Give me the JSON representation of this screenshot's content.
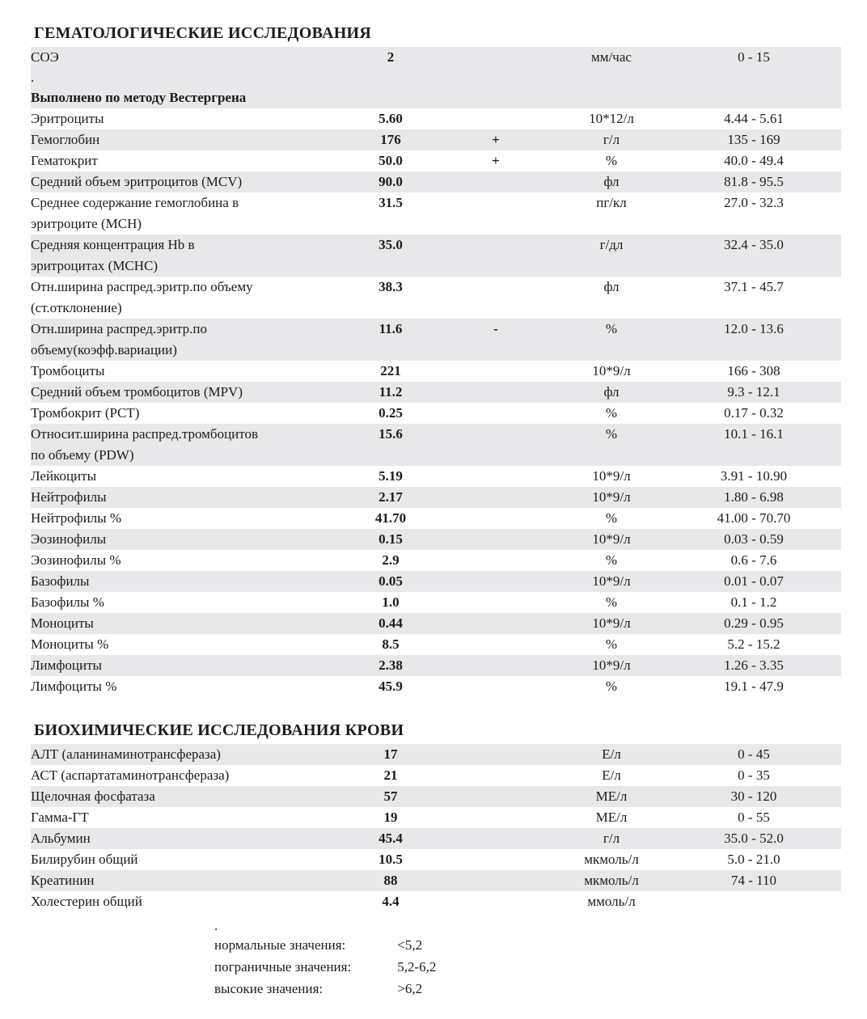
{
  "page": {
    "background": "#ffffff",
    "text_color": "#1c1c1c",
    "stripe_color": "#e8e8ea"
  },
  "hematology": {
    "title": "ГЕМАТОЛОГИЧЕСКИЕ ИССЛЕДОВАНИЯ",
    "rows": [
      {
        "name": "СОЭ",
        "value": "2",
        "flag": "",
        "unit": "мм/час",
        "range": "0 - 15",
        "shaded": true,
        "note_dot": ".",
        "note": "Выполнено по методу Вестергрена"
      },
      {
        "name": "Эритроциты",
        "value": "5.60",
        "flag": "",
        "unit": "10*12/л",
        "range": "4.44 - 5.61",
        "shaded": false
      },
      {
        "name": "Гемоглобин",
        "value": "176",
        "flag": "+",
        "unit": "г/л",
        "range": "135 - 169",
        "shaded": true
      },
      {
        "name": "Гематокрит",
        "value": "50.0",
        "flag": "+",
        "unit": "%",
        "range": "40.0 - 49.4",
        "shaded": false
      },
      {
        "name": "Средний объем эритроцитов (MCV)",
        "value": "90.0",
        "flag": "",
        "unit": "фл",
        "range": "81.8 - 95.5",
        "shaded": true
      },
      {
        "name": "Среднее содержание гемоглобина в\nэритроците (MCH)",
        "value": "31.5",
        "flag": "",
        "unit": "пг/кл",
        "range": "27.0 - 32.3",
        "shaded": false
      },
      {
        "name": "Средняя концентрация Hb в\nэритроцитах (MCHC)",
        "value": "35.0",
        "flag": "",
        "unit": "г/дл",
        "range": "32.4 - 35.0",
        "shaded": true
      },
      {
        "name": "Отн.ширина распред.эритр.по объему\n(ст.отклонение)",
        "value": "38.3",
        "flag": "",
        "unit": "фл",
        "range": "37.1 - 45.7",
        "shaded": false
      },
      {
        "name": "Отн.ширина распред.эритр.по\nобъему(коэфф.вариации)",
        "value": "11.6",
        "flag": "-",
        "unit": "%",
        "range": "12.0 - 13.6",
        "shaded": true
      },
      {
        "name": "Тромбоциты",
        "value": "221",
        "flag": "",
        "unit": "10*9/л",
        "range": "166 - 308",
        "shaded": false
      },
      {
        "name": "Средний объем тромбоцитов (MPV)",
        "value": "11.2",
        "flag": "",
        "unit": "фл",
        "range": "9.3 - 12.1",
        "shaded": true
      },
      {
        "name": "Тромбокрит (PCT)",
        "value": "0.25",
        "flag": "",
        "unit": "%",
        "range": "0.17 - 0.32",
        "shaded": false
      },
      {
        "name": "Относит.ширина распред.тромбоцитов\nпо объему (PDW)",
        "value": "15.6",
        "flag": "",
        "unit": "%",
        "range": "10.1 - 16.1",
        "shaded": true
      },
      {
        "name": "Лейкоциты",
        "value": "5.19",
        "flag": "",
        "unit": "10*9/л",
        "range": "3.91 - 10.90",
        "shaded": false
      },
      {
        "name": "Нейтрофилы",
        "value": "2.17",
        "flag": "",
        "unit": "10*9/л",
        "range": "1.80 - 6.98",
        "shaded": true
      },
      {
        "name": "Нейтрофилы %",
        "value": "41.70",
        "flag": "",
        "unit": "%",
        "range": "41.00 - 70.70",
        "shaded": false
      },
      {
        "name": "Эозинофилы",
        "value": "0.15",
        "flag": "",
        "unit": "10*9/л",
        "range": "0.03 - 0.59",
        "shaded": true
      },
      {
        "name": "Эозинофилы %",
        "value": "2.9",
        "flag": "",
        "unit": "%",
        "range": "0.6 - 7.6",
        "shaded": false
      },
      {
        "name": "Базофилы",
        "value": "0.05",
        "flag": "",
        "unit": "10*9/л",
        "range": "0.01 - 0.07",
        "shaded": true
      },
      {
        "name": "Базофилы %",
        "value": "1.0",
        "flag": "",
        "unit": "%",
        "range": "0.1 - 1.2",
        "shaded": false
      },
      {
        "name": "Моноциты",
        "value": "0.44",
        "flag": "",
        "unit": "10*9/л",
        "range": "0.29 - 0.95",
        "shaded": true
      },
      {
        "name": "Моноциты %",
        "value": "8.5",
        "flag": "",
        "unit": "%",
        "range": "5.2 - 15.2",
        "shaded": false
      },
      {
        "name": "Лимфоциты",
        "value": "2.38",
        "flag": "",
        "unit": "10*9/л",
        "range": "1.26 - 3.35",
        "shaded": true
      },
      {
        "name": "Лимфоциты %",
        "value": "45.9",
        "flag": "",
        "unit": "%",
        "range": "19.1 - 47.9",
        "shaded": false
      }
    ]
  },
  "biochemistry": {
    "title": "БИОХИМИЧЕСКИЕ ИССЛЕДОВАНИЯ КРОВИ",
    "rows": [
      {
        "name": "АЛТ (аланинаминотрансфераза)",
        "value": "17",
        "flag": "",
        "unit": "Е/л",
        "range": "0 - 45",
        "shaded": true
      },
      {
        "name": "АСТ (аспартатаминотрансфераза)",
        "value": "21",
        "flag": "",
        "unit": "Е/л",
        "range": "0 - 35",
        "shaded": false
      },
      {
        "name": "Щелочная фосфатаза",
        "value": "57",
        "flag": "",
        "unit": "МЕ/л",
        "range": "30 - 120",
        "shaded": true
      },
      {
        "name": "Гамма-ГТ",
        "value": "19",
        "flag": "",
        "unit": "МЕ/л",
        "range": "0 - 55",
        "shaded": false
      },
      {
        "name": "Альбумин",
        "value": "45.4",
        "flag": "",
        "unit": "г/л",
        "range": "35.0 - 52.0",
        "shaded": true
      },
      {
        "name": "Билирубин общий",
        "value": "10.5",
        "flag": "",
        "unit": "мкмоль/л",
        "range": "5.0 - 21.0",
        "shaded": false
      },
      {
        "name": "Креатинин",
        "value": "88",
        "flag": "",
        "unit": "мкмоль/л",
        "range": "74 - 110",
        "shaded": true
      },
      {
        "name": "Холестерин общий",
        "value": "4.4",
        "flag": "",
        "unit": "ммоль/л",
        "range": "",
        "shaded": false
      }
    ]
  },
  "footer": {
    "dot": ".",
    "scale": [
      {
        "label": "нормальные значения:",
        "value": "<5,2"
      },
      {
        "label": "пограничные значения:",
        "value": "5,2-6,2"
      },
      {
        "label": "высокие значения:",
        "value": ">6,2"
      }
    ]
  }
}
